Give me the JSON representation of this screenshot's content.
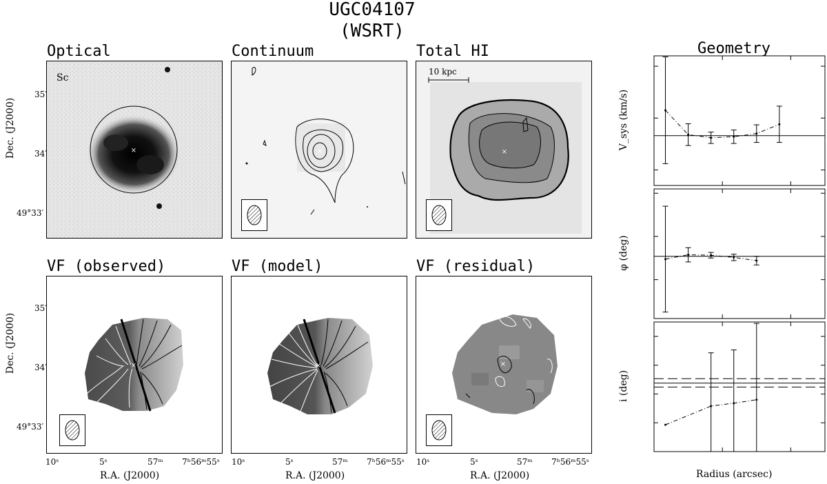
{
  "figure": {
    "title": "UGC04107",
    "subtitle": "(WSRT)"
  },
  "panels": {
    "optical": "Optical",
    "continuum": "Continuum",
    "total_hi": "Total HI",
    "vf_observed": "VF (observed)",
    "vf_model": "VF (model)",
    "vf_residual": "VF (residual)",
    "geometry": "Geometry"
  },
  "annotations": {
    "morph_type": "Sc",
    "scale_bar": "10 kpc"
  },
  "map_axes": {
    "ylabel": "Dec. (J2000)",
    "xlabel": "R.A. (J2000)",
    "y_ticks": [
      "35′",
      "34′",
      "49°33′"
    ],
    "x_ticks": [
      "10ˢ",
      "5ˢ",
      "57ᵐ",
      "7ʰ56ᵐ55ˢ"
    ]
  },
  "colors": {
    "ink": "#000000",
    "panel_bg": "#ffffff"
  },
  "chart_data": [
    {
      "type": "line",
      "panel": "geometry-vsys",
      "title": "",
      "xlabel": "Radius (arcsec)",
      "ylabel": "V_sys (km/s)",
      "xlim": [
        0,
        75
      ],
      "ylim": [
        3497,
        3522
      ],
      "yticks": [
        3500,
        3510,
        3520
      ],
      "x": [
        5,
        15,
        25,
        35,
        45,
        55
      ],
      "values": [
        3511.5,
        3506.8,
        3506.2,
        3506.4,
        3507.0,
        3508.8
      ],
      "errors": [
        10.3,
        2.1,
        1.1,
        1.3,
        1.7,
        3.5
      ],
      "hline": 3506.6
    },
    {
      "type": "line",
      "panel": "geometry-pa",
      "title": "",
      "xlabel": "Radius (arcsec)",
      "ylabel": "φ (deg)",
      "xlim": [
        0,
        75
      ],
      "ylim": [
        262,
        322
      ],
      "yticks": [
        280,
        300,
        320
      ],
      "x": [
        5,
        15,
        25,
        35,
        45
      ],
      "values": [
        289.5,
        291.5,
        291.3,
        290.3,
        288.8
      ],
      "errors": [
        24.5,
        3.3,
        1.3,
        1.5,
        2.0
      ],
      "hline": 290.8
    },
    {
      "type": "line",
      "panel": "geometry-incl",
      "title": "",
      "xlabel": "Radius (arcsec)",
      "ylabel": "i (deg)",
      "xlim": [
        0,
        75
      ],
      "ylim": [
        0,
        45
      ],
      "yticks": [
        0,
        10,
        20,
        30,
        40
      ],
      "xticks": [
        0,
        30,
        60
      ],
      "x": [
        5,
        25,
        35,
        45
      ],
      "values": [
        9.3,
        15.8,
        16.8,
        18.0
      ],
      "errors": [
        0,
        18.5,
        18.5,
        26.5
      ],
      "hline": 23.8,
      "hline_dashed": [
        22.4,
        25.3
      ]
    }
  ]
}
